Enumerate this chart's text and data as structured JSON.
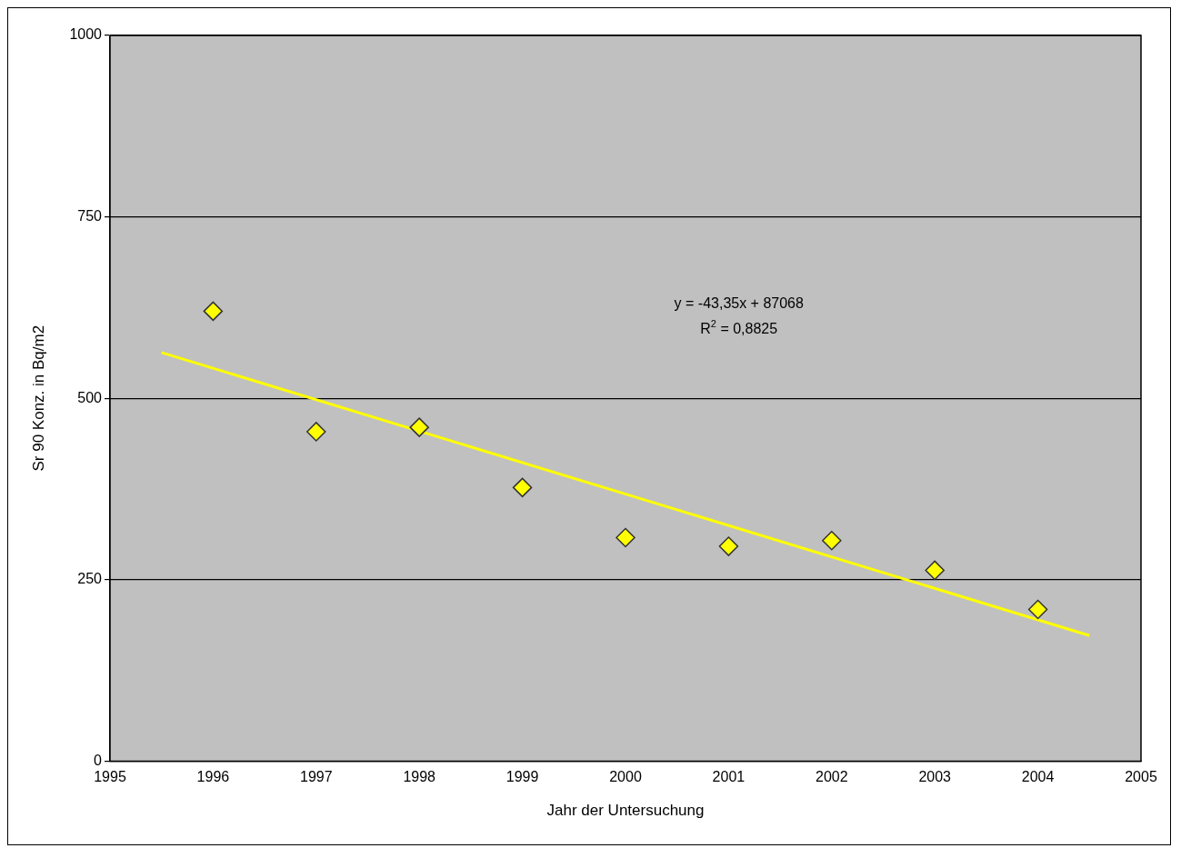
{
  "chart_data": {
    "type": "scatter",
    "xlabel": "Jahr der Untersuchung",
    "ylabel": "Sr 90 Konz. in Bq/m2",
    "xlim": [
      1995,
      2005
    ],
    "xticks": [
      1995,
      1996,
      1997,
      1998,
      1999,
      2000,
      2001,
      2002,
      2003,
      2004,
      2005
    ],
    "ylim": [
      0,
      1000
    ],
    "yticks": [
      0,
      250,
      500,
      750,
      1000
    ],
    "grid": "y",
    "marker": "diamond",
    "annotations": [
      "y = -43,35x + 87068",
      "R$^{2}$ = 0,8825"
    ],
    "series": [
      {
        "color": "#ffff00",
        "x": [
          1996,
          1997,
          1998,
          1999,
          2000,
          2001,
          2002,
          2003,
          2004
        ],
        "values": [
          620,
          454,
          460,
          377,
          308,
          296,
          304,
          263,
          209
        ]
      },
      {
        "type": "line",
        "color": "#ffff00",
        "marker": "none",
        "x": [
          1995.5,
          2004.5
        ],
        "values": [
          563,
          173
        ]
      }
    ]
  }
}
